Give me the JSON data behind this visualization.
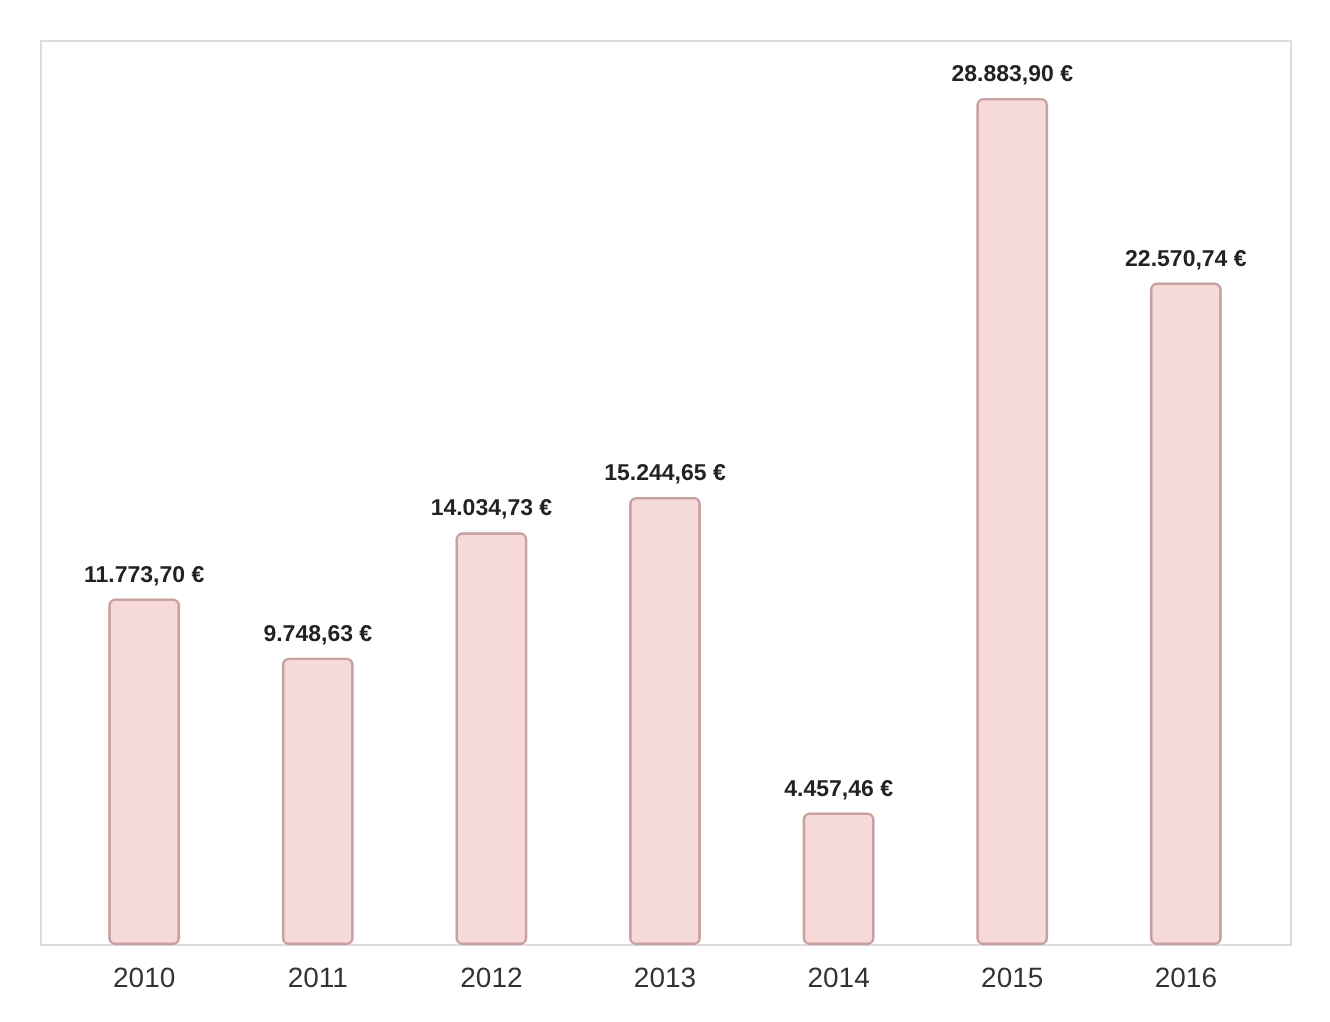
{
  "chart_data": {
    "type": "bar",
    "categories": [
      "2010",
      "2011",
      "2012",
      "2013",
      "2014",
      "2015",
      "2016"
    ],
    "values": [
      11773.7,
      9748.63,
      14034.73,
      15244.65,
      4457.46,
      28883.9,
      22570.74
    ],
    "value_labels": [
      "11.773,70 €",
      "9.748,63 €",
      "14.034,73 €",
      "15.244,65 €",
      "4.457,46 €",
      "28.883,90 €",
      "22.570,74 €"
    ],
    "color": "#f6dada",
    "grid": false
  }
}
